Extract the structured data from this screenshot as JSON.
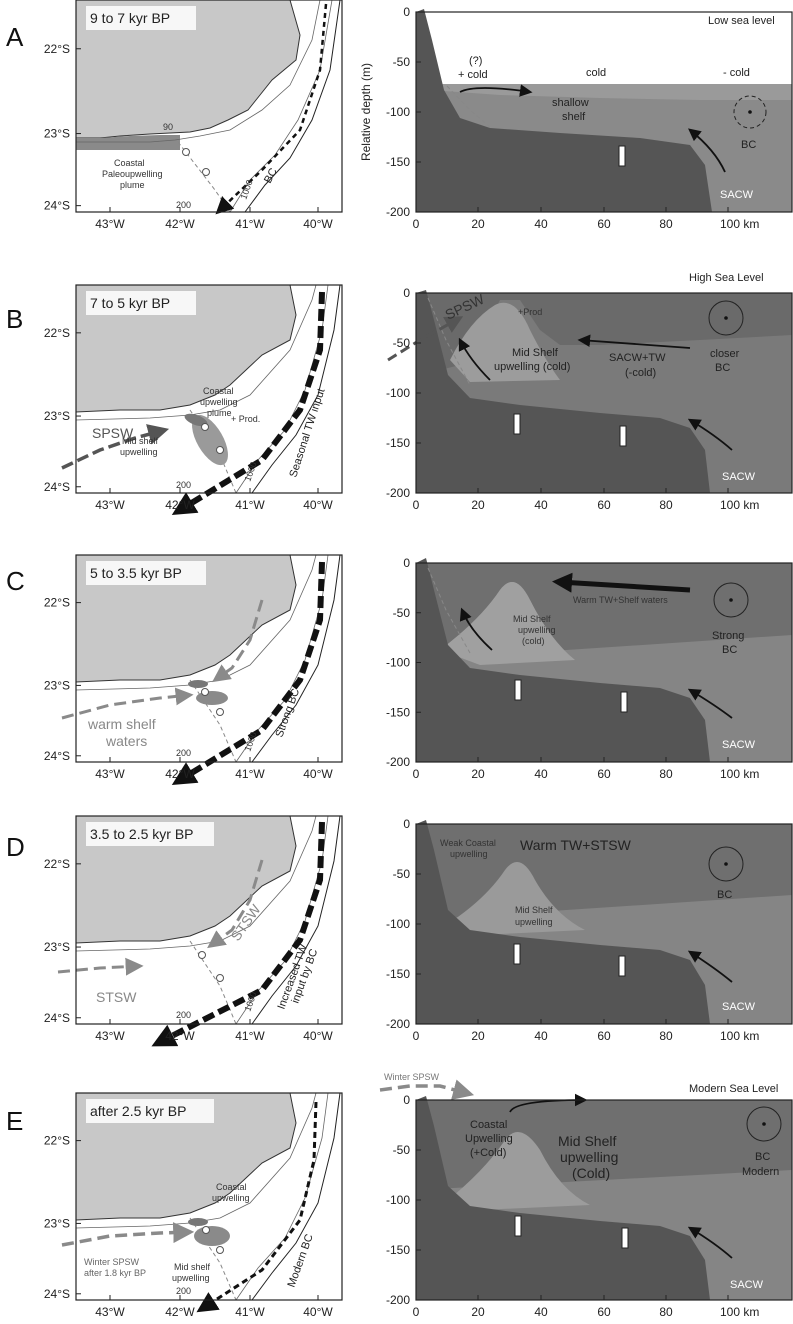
{
  "panels": [
    {
      "letter": "A",
      "period": "9 to 7 kyr BP",
      "sea_level": "Low sea level",
      "map_labels": [
        "Coastal",
        "Paleoupwelling",
        "plume"
      ],
      "map_current": "BC",
      "iso_labels": [
        "90",
        "200",
        "1000"
      ],
      "section_labels": [
        "(?)",
        "+ cold",
        "cold",
        "- cold",
        "shallow",
        "shelf",
        "BC",
        "SACW"
      ],
      "ymin": -200,
      "ymax": 0
    },
    {
      "letter": "B",
      "period": "7 to 5 kyr BP",
      "sea_level": "High Sea Level",
      "map_labels": [
        "Coastal",
        "upwelling",
        "plume",
        "+ Prod.",
        "Mid shelf",
        "upwelling",
        "SPSW",
        "Seasonal TW input"
      ],
      "iso_labels": [
        "200",
        "1000"
      ],
      "section_labels": [
        "SPSW",
        "+Prod",
        "Mid Shelf",
        "upwelling (cold)",
        "SACW+TW",
        "(-cold)",
        "closer",
        "BC",
        "SACW"
      ]
    },
    {
      "letter": "C",
      "period": "5 to 3.5 kyr BP",
      "sea_level": "",
      "map_labels": [
        "warm shelf",
        "waters",
        "Strong BC"
      ],
      "iso_labels": [
        "200",
        "1000"
      ],
      "section_labels": [
        "Warm TW+Shelf waters",
        "Mid Shelf",
        "upwelling",
        "(cold)",
        "Strong",
        "BC",
        "SACW"
      ]
    },
    {
      "letter": "D",
      "period": "3.5 to 2.5 kyr BP",
      "sea_level": "",
      "map_labels": [
        "STSW",
        "STSW",
        "Increased TW",
        "input by BC"
      ],
      "iso_labels": [
        "200",
        "1000"
      ],
      "section_labels": [
        "Weak Coastal",
        "upwelling",
        "Warm TW+STSW",
        "Mid Shelf",
        "upwelling",
        "BC",
        "SACW"
      ]
    },
    {
      "letter": "E",
      "period": "after 2.5 kyr BP",
      "sea_level": "Modern Sea Level",
      "map_labels": [
        "Coastal",
        "upwelling",
        "Mid shelf",
        "upwelling",
        "Winter SPSW",
        "after 1.8 kyr BP",
        "Modern BC"
      ],
      "iso_labels": [
        "200"
      ],
      "section_labels": [
        "Winter SPSW",
        "Coastal",
        "Upwelling",
        "(+Cold)",
        "Mid Shelf",
        "upwelling",
        "(Cold)",
        "BC",
        "Modern",
        "SACW"
      ]
    }
  ],
  "map_axes": {
    "lat_ticks": [
      "22°S",
      "23°S",
      "24°S"
    ],
    "lon_ticks": [
      "43°W",
      "42°W",
      "41°W",
      "40°W"
    ]
  },
  "section_axes": {
    "ylabel": "Relative depth (m)",
    "y_ticks": [
      "0",
      "-50",
      "-100",
      "-150",
      "-200"
    ],
    "x_ticks": [
      "0",
      "20",
      "40",
      "60",
      "80",
      "100 km"
    ]
  },
  "colors": {
    "land": "#c8c8c8",
    "bathymetry": "#555555",
    "sacw": "#8a8a8a",
    "surface_water": "#6f6f6f",
    "upwelling": "#9c9c9c"
  }
}
